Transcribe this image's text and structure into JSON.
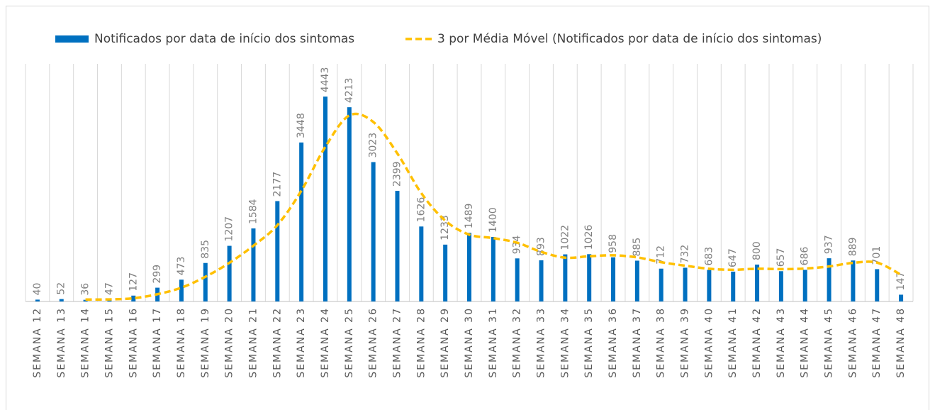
{
  "chart_data": {
    "type": "bar",
    "categories": [
      "SEMANA 12",
      "SEMANA 13",
      "SEMANA 14",
      "SEMANA 15",
      "SEMANA 16",
      "SEMANA 17",
      "SEMANA 18",
      "SEMANA 19",
      "SEMANA 20",
      "SEMANA 21",
      "SEMANA 22",
      "SEMANA 23",
      "SEMANA 24",
      "SEMANA 25",
      "SEMANA 26",
      "SEMANA 27",
      "SEMANA 28",
      "SEMANA 29",
      "SEMANA 30",
      "SEMANA 31",
      "SEMANA 32",
      "SEMANA 33",
      "SEMANA 34",
      "SEMANA 35",
      "SEMANA 36",
      "SEMANA 37",
      "SEMANA 38",
      "SEMANA 39",
      "SEMANA 40",
      "SEMANA 41",
      "SEMANA 42",
      "SEMANA 43",
      "SEMANA 44",
      "SEMANA 45",
      "SEMANA 46",
      "SEMANA 47",
      "SEMANA 48"
    ],
    "series": [
      {
        "name": "Notificados por data de início dos sintomas",
        "type": "bar",
        "color": "#0070c0",
        "values": [
          40,
          52,
          36,
          47,
          127,
          299,
          473,
          835,
          1207,
          1584,
          2177,
          3448,
          4443,
          4213,
          3023,
          2399,
          1626,
          1233,
          1489,
          1400,
          934,
          893,
          1022,
          1026,
          958,
          885,
          712,
          732,
          683,
          647,
          800,
          657,
          686,
          937,
          889,
          701,
          147
        ]
      },
      {
        "name": "3 por Média Móvel (Notificados por data de início dos sintomas)",
        "type": "line",
        "color": "#ffc000",
        "dashed": true,
        "values": [
          null,
          null,
          42.7,
          45,
          70,
          157.7,
          299.7,
          535.7,
          838.3,
          1208.7,
          1656,
          2403,
          3356,
          4034.7,
          3893,
          3211.7,
          2349.3,
          1752.7,
          1449.3,
          1374,
          1274.3,
          1075.7,
          949.7,
          980.3,
          1002,
          956.3,
          851.7,
          776.3,
          709,
          687.3,
          710,
          701.3,
          714.3,
          760,
          837.3,
          842.3,
          579
        ]
      }
    ],
    "ylim": [
      0,
      5000
    ],
    "grid": "x",
    "legend": "top"
  }
}
